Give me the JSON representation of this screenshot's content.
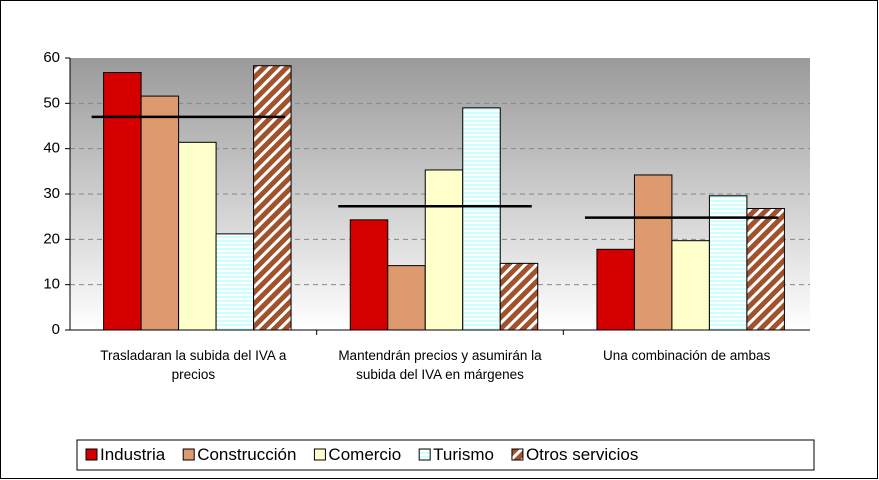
{
  "chart_data": {
    "type": "bar",
    "categories": [
      "Trasladaran la subida del IVA a precios",
      "Mantendrán precios y asumirán la subida del IVA en márgenes",
      "Una combinación de ambas"
    ],
    "series": [
      {
        "name": "Industria",
        "color": "#d40000",
        "values": [
          56.8,
          24.3,
          17.8
        ]
      },
      {
        "name": "Construcción",
        "color": "#dc9a6e",
        "values": [
          51.6,
          14.2,
          34.2
        ]
      },
      {
        "name": "Comercio",
        "color": "#ffffcc",
        "values": [
          41.4,
          35.3,
          19.7
        ]
      },
      {
        "name": "Turismo",
        "color": "#ccffff",
        "pattern": "horizontal-stripes",
        "values": [
          21.2,
          49.0,
          29.6
        ]
      },
      {
        "name": "Otros servicios",
        "color": "#a0522d",
        "pattern": "diagonal-stripes",
        "values": [
          58.3,
          14.7,
          26.8
        ]
      }
    ],
    "reference_values": [
      47.0,
      27.3,
      24.8
    ],
    "ylim": [
      0,
      60
    ],
    "yticks": [
      0,
      10,
      20,
      30,
      40,
      50,
      60
    ],
    "grid": true,
    "legend": "bottom"
  }
}
